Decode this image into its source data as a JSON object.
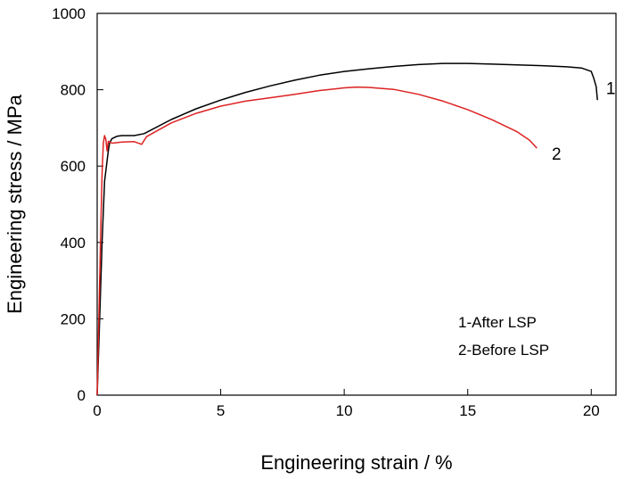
{
  "chart_data": {
    "type": "line",
    "title": "",
    "xlabel": "Engineering strain / %",
    "ylabel": "Engineering stress / MPa",
    "xlim": [
      0,
      21
    ],
    "ylim": [
      0,
      1000
    ],
    "x_ticks": [
      0,
      5,
      10,
      15,
      20
    ],
    "y_ticks": [
      0,
      200,
      400,
      600,
      800,
      1000
    ],
    "grid": false,
    "legend_position": "bottom-right",
    "legend_entries": [
      "1-After LSP",
      "2-Before LSP"
    ],
    "series": [
      {
        "name": "1",
        "color": "#000000",
        "points": [
          [
            0.0,
            0
          ],
          [
            0.1,
            200
          ],
          [
            0.2,
            400
          ],
          [
            0.3,
            560
          ],
          [
            0.45,
            640
          ],
          [
            0.5,
            660
          ],
          [
            0.6,
            672
          ],
          [
            0.8,
            678
          ],
          [
            1.0,
            680
          ],
          [
            1.5,
            680
          ],
          [
            1.9,
            685
          ],
          [
            3.0,
            722
          ],
          [
            4.0,
            750
          ],
          [
            5.0,
            773
          ],
          [
            6.0,
            793
          ],
          [
            7.0,
            810
          ],
          [
            8.0,
            825
          ],
          [
            9.0,
            838
          ],
          [
            10.0,
            848
          ],
          [
            11.0,
            855
          ],
          [
            12.0,
            861
          ],
          [
            13.0,
            866
          ],
          [
            14.0,
            869
          ],
          [
            15.0,
            869
          ],
          [
            16.0,
            867
          ],
          [
            17.0,
            865
          ],
          [
            18.0,
            863
          ],
          [
            19.0,
            860
          ],
          [
            19.6,
            857
          ],
          [
            20.0,
            848
          ],
          [
            20.1,
            830
          ],
          [
            20.2,
            808
          ],
          [
            20.25,
            773
          ]
        ],
        "label_at": [
          20.6,
          788
        ]
      },
      {
        "name": "2",
        "color": "#dd2222",
        "points": [
          [
            0.0,
            0
          ],
          [
            0.05,
            150
          ],
          [
            0.1,
            300
          ],
          [
            0.15,
            450
          ],
          [
            0.2,
            580
          ],
          [
            0.25,
            660
          ],
          [
            0.3,
            680
          ],
          [
            0.35,
            670
          ],
          [
            0.4,
            640
          ],
          [
            0.45,
            665
          ],
          [
            0.6,
            660
          ],
          [
            1.0,
            663
          ],
          [
            1.5,
            664
          ],
          [
            1.8,
            657
          ],
          [
            2.0,
            677
          ],
          [
            3.0,
            713
          ],
          [
            4.0,
            738
          ],
          [
            5.0,
            757
          ],
          [
            6.0,
            770
          ],
          [
            7.0,
            779
          ],
          [
            8.0,
            788
          ],
          [
            9.0,
            798
          ],
          [
            10.0,
            805
          ],
          [
            10.5,
            807
          ],
          [
            11.0,
            806
          ],
          [
            12.0,
            801
          ],
          [
            13.0,
            788
          ],
          [
            14.0,
            770
          ],
          [
            15.0,
            748
          ],
          [
            16.0,
            721
          ],
          [
            17.0,
            690
          ],
          [
            17.5,
            668
          ],
          [
            17.8,
            647
          ]
        ],
        "label_at": [
          18.4,
          617
        ]
      }
    ]
  }
}
